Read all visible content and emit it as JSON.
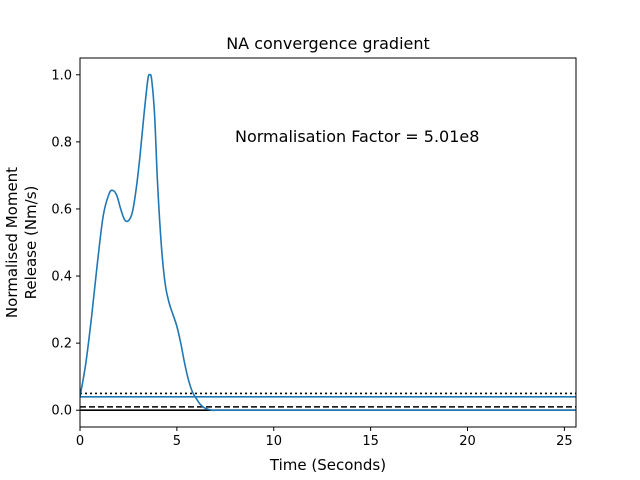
{
  "chart_data": {
    "type": "line",
    "title": "NA convergence gradient",
    "xlabel": "Time (Seconds)",
    "ylabel_lines": [
      "Normalised Moment",
      "Release (Nm/s)"
    ],
    "xlim": [
      0,
      25.6
    ],
    "ylim": [
      -0.05,
      1.05
    ],
    "xticks": [
      0,
      5,
      10,
      15,
      20,
      25
    ],
    "yticks": [
      0.0,
      0.2,
      0.4,
      0.6,
      0.8,
      1.0
    ],
    "xtick_labels": [
      "0",
      "5",
      "10",
      "15",
      "20",
      "25"
    ],
    "ytick_labels": [
      "0.0",
      "0.2",
      "0.4",
      "0.6",
      "0.8",
      "1.0"
    ],
    "grid": false,
    "annotation": "Normalisation Factor = 5.01e8",
    "series": [
      {
        "color": "#1f77b4",
        "x": [
          0,
          0.3,
          0.6,
          0.9,
          1.2,
          1.5,
          1.7,
          1.9,
          2.1,
          2.3,
          2.5,
          2.7,
          2.9,
          3.1,
          3.3,
          3.5,
          3.6,
          3.7,
          3.85,
          4.0,
          4.2,
          4.4,
          4.6,
          4.8,
          5.0,
          5.2,
          5.4,
          5.6,
          5.8,
          6.0,
          6.2,
          6.4,
          6.6,
          6.8,
          7.0,
          7.5,
          8.0,
          10,
          15,
          20,
          25.6
        ],
        "y": [
          0.04,
          0.14,
          0.28,
          0.44,
          0.58,
          0.645,
          0.655,
          0.64,
          0.6,
          0.568,
          0.565,
          0.59,
          0.66,
          0.76,
          0.88,
          0.985,
          1.0,
          0.985,
          0.88,
          0.68,
          0.49,
          0.375,
          0.32,
          0.285,
          0.25,
          0.2,
          0.14,
          0.09,
          0.055,
          0.035,
          0.018,
          0.008,
          0.003,
          0.0,
          0.0,
          0.0,
          0.0,
          0.0,
          0.0,
          0.0,
          0.0
        ]
      }
    ],
    "hlines": [
      {
        "y": 0.05,
        "style": "dotted",
        "color": "#000000"
      },
      {
        "y": 0.04,
        "style": "solid",
        "color": "#1f77b4"
      },
      {
        "y": 0.01,
        "style": "dashed",
        "color": "#000000"
      },
      {
        "y": 0.0,
        "style": "solid",
        "color": "#000000"
      }
    ]
  }
}
